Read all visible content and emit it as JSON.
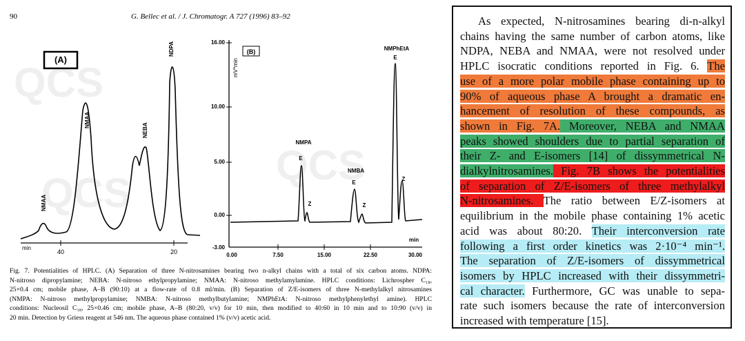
{
  "header": {
    "page": "90",
    "running_head": "G. Bellec et al. / J. Chromatogr. A 727 (1996) 83–92"
  },
  "watermark": "QCS",
  "figure_a": {
    "label": "(A)",
    "peaks": [
      "NMAA",
      "NMAA",
      "NEBA",
      "NDPA"
    ],
    "x_axis_unit": "min",
    "x_ticks": [
      "40",
      "20"
    ]
  },
  "figure_b": {
    "label": "(B)",
    "y_axis_label": "mV*min",
    "y_ticks": [
      "16.00",
      "10.00",
      "5.00",
      "0.00",
      "-3.00"
    ],
    "x_ticks": [
      "0.00",
      "7.50",
      "15.00",
      "22.50",
      "30.00"
    ],
    "x_axis_unit": "min",
    "peaks": [
      "NMPA",
      "E",
      "Z",
      "NMBA",
      "E",
      "Z",
      "NMPhEtA",
      "E",
      "Z"
    ]
  },
  "caption": [
    "Fig. 7. Potentialities of HPLC. (A) Separation of three N-nitrosamines bearing two n-alkyl chains with a total of six carbon atoms. NDPA:",
    "N-nitroso dipropylamine; NEBA: N-nitroso ethylpropylamine; NMAA: N-nitroso methylamylamine. HPLC conditions: Lichrospher C₁₈,",
    "25×0.4 cm; mobile phase, A–B (90:10) at a flow-rate of 0.8 ml/min. (B) Separation of Z/E-isomers of three N-methylalkyl nitrosamines",
    "(NMPA: N-nitroso methylpropylamine; NMBA: N-nitroso methylbutylamine; NMPhEtA: N-nitroso methylphenylethyl amine). HPLC",
    "conditions: Nucleosil C₁₈, 25×0.46 cm; mobile phase, A–B (80:20, v/v) for 10 min, then modified to 40:60 in 10 min and to 10:90 (v/v) in",
    "20 min. Detection by Griess reagent at 546 nm. The aqueous phase contained 1% (v/v) acetic acid."
  ],
  "excerpt": [
    [
      {
        "text": "As expected, N-nitrosamines bearing di-n-alkyl"
      }
    ],
    [
      {
        "text": "chains having the same number of carbon atoms, like"
      }
    ],
    [
      {
        "text": "NDPA, NEBA and NMAA, were not resolved under"
      }
    ],
    [
      {
        "text": "HPLC isocratic conditions reported in Fig. 6. "
      },
      {
        "text": "The",
        "highlight": "orange"
      }
    ],
    [
      {
        "text": "use of a more polar mobile phase containing up to",
        "highlight": "orange"
      }
    ],
    [
      {
        "text": "90% of aqueous phase A brought a dramatic en-",
        "highlight": "orange"
      }
    ],
    [
      {
        "text": "hancement of resolution of these compounds, as",
        "highlight": "orange"
      }
    ],
    [
      {
        "text": "shown in Fig. 7A.",
        "highlight": "orange"
      },
      {
        "text": " Moreover, NEBA and NMAA",
        "highlight": "green"
      }
    ],
    [
      {
        "text": "peaks showed shoulders due to partial separation of",
        "highlight": "green"
      }
    ],
    [
      {
        "text": "their Z- and E-isomers [14] of dissymmetrical N-",
        "highlight": "green"
      }
    ],
    [
      {
        "text": "dialkylnitrosamines.",
        "highlight": "green"
      },
      {
        "text": " Fig. 7B shows the potentialities",
        "highlight": "red"
      }
    ],
    [
      {
        "text": "of separation of Z/E-isomers of three methylalkyl",
        "highlight": "red"
      }
    ],
    [
      {
        "text": "N-nitrosamines. ",
        "highlight": "red"
      },
      {
        "text": "The ratio between E/Z-isomers at"
      }
    ],
    [
      {
        "text": "equilibrium in the mobile phase containing 1% acetic"
      }
    ],
    [
      {
        "text": "acid was about 80:20. "
      },
      {
        "text": "Their interconversion rate",
        "highlight": "cyan"
      }
    ],
    [
      {
        "text": "following a first order kinetics was 2·10⁻⁴ min⁻¹.",
        "highlight": "cyan"
      }
    ],
    [
      {
        "text": "The separation of Z/E-isomers of dissymmetrical",
        "highlight": "cyan"
      }
    ],
    [
      {
        "text": "isomers by HPLC increased with their dissymmetri-",
        "highlight": "cyan"
      }
    ],
    [
      {
        "text": "cal character.",
        "highlight": "cyan"
      },
      {
        "text": " Furthermore, GC was unable to sepa-"
      }
    ],
    [
      {
        "text": "rate such isomers because the rate of interconversion"
      }
    ],
    [
      {
        "text": "increased with temperature [15]."
      }
    ]
  ]
}
